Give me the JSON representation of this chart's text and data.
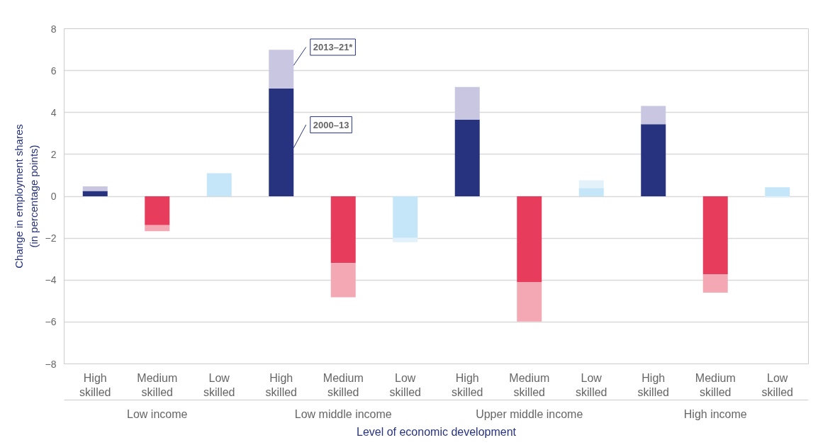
{
  "chart_data": {
    "type": "bar",
    "stacked": true,
    "categories": [
      "High skilled",
      "Medium skilled",
      "Low skilled",
      "High skilled",
      "Medium skilled",
      "Low skilled",
      "High skilled",
      "Medium skilled",
      "Low skilled",
      "High skilled",
      "Medium skilled",
      "Low skilled"
    ],
    "series": [
      {
        "name": "2000–13",
        "colors": [
          "#27337f",
          "#e83c5d",
          "#c5e6f9",
          "#27337f",
          "#e83c5d",
          "#c5e6f9",
          "#27337f",
          "#e83c5d",
          "#c5e6f9",
          "#27337f",
          "#e83c5d",
          "#c5e6f9"
        ],
        "values": [
          0.25,
          -1.38,
          1.1,
          5.14,
          -3.19,
          -1.99,
          3.66,
          -4.09,
          0.4,
          3.44,
          -3.73,
          0.43
        ]
      },
      {
        "name": "2013–21*",
        "colors": [
          "#c8c6e1",
          "#f4a8b4",
          "#e3f1fb",
          "#c8c6e1",
          "#f4a8b4",
          "#e3f1fb",
          "#c8c6e1",
          "#f4a8b4",
          "#e3f1fb",
          "#c8c6e1",
          "#f4a8b4",
          "#e3f1fb"
        ],
        "values": [
          0.22,
          -0.29,
          0,
          1.85,
          -1.63,
          -0.2,
          1.56,
          -1.89,
          0.36,
          0.87,
          -0.87,
          -0.07
        ]
      }
    ],
    "annotations": [
      "Low income",
      "Low middle income",
      "Upper middle income",
      "High income"
    ],
    "xlabel": "Level of economic development",
    "ylabel": "Change in employment shares\n(in percentage points)",
    "ylim": [
      -8,
      8
    ],
    "yticks": [
      {
        "value": -8,
        "label": "−8"
      },
      {
        "value": -6,
        "label": "−6"
      },
      {
        "value": -4,
        "label": "−4"
      },
      {
        "value": -2,
        "label": "−2"
      },
      0,
      2,
      4,
      6,
      8
    ],
    "grid": "y"
  }
}
